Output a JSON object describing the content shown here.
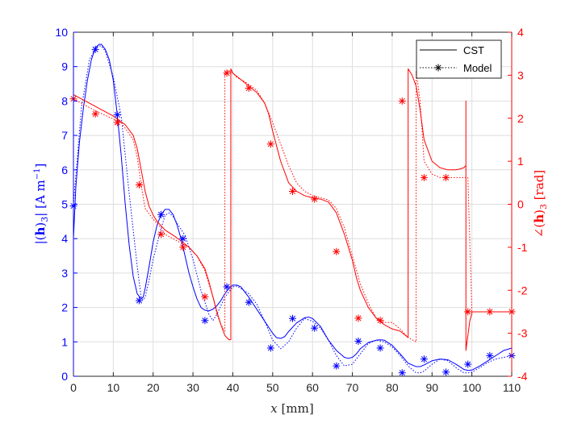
{
  "chart_data": {
    "type": "line",
    "title": "",
    "xlabel": "x [mm]",
    "ylabel_left": "|(h)3| [A m^-1]",
    "ylabel_right": "∠(h)3 [rad]",
    "xlim": [
      0,
      110
    ],
    "ylim_left": [
      0,
      10
    ],
    "ylim_right": [
      -4,
      4
    ],
    "x_ticks": [
      0,
      10,
      20,
      30,
      40,
      50,
      60,
      70,
      80,
      90,
      100,
      110
    ],
    "y_ticks_left": [
      0,
      1,
      2,
      3,
      4,
      5,
      6,
      7,
      8,
      9,
      10
    ],
    "y_ticks_right": [
      -4,
      -3,
      -2,
      -1,
      0,
      1,
      2,
      3,
      4
    ],
    "grid": true,
    "legend_position": "top-right",
    "legend": [
      "CST",
      "Model"
    ],
    "colors": {
      "magnitude": "#0000ff",
      "phase": "#ff0000",
      "legend_line": "#000000",
      "grid": "#dedede"
    },
    "series": [
      {
        "name": "CST",
        "quantity": "magnitude",
        "axis": "left",
        "line_style": "solid",
        "x": [
          0,
          0.6,
          1.5,
          2.5,
          3.5,
          4.5,
          5.5,
          6.5,
          7,
          8,
          9,
          10,
          11,
          12,
          13,
          14,
          15,
          16,
          17,
          17.5,
          18,
          19,
          20,
          21,
          22,
          23,
          24,
          25,
          26,
          27,
          28,
          29,
          30,
          31,
          32,
          33,
          34,
          35,
          36,
          37,
          38,
          39,
          40,
          41,
          42,
          44,
          46,
          48,
          50,
          51,
          52,
          53,
          54,
          56,
          58,
          59,
          60,
          62,
          64,
          66,
          68,
          69,
          70,
          71,
          72,
          74,
          76,
          77,
          78,
          80,
          82,
          84,
          86,
          87,
          88,
          90,
          92,
          94,
          96,
          98,
          99,
          100,
          102,
          104,
          106,
          108,
          110
        ],
        "y": [
          4.0,
          5.5,
          6.8,
          7.8,
          8.6,
          9.2,
          9.55,
          9.65,
          9.65,
          9.5,
          9.2,
          8.6,
          7.6,
          6.4,
          5.0,
          3.8,
          2.9,
          2.4,
          2.25,
          2.3,
          2.55,
          3.2,
          3.9,
          4.4,
          4.7,
          4.85,
          4.85,
          4.7,
          4.4,
          4.0,
          3.5,
          3.0,
          2.6,
          2.25,
          2.0,
          1.92,
          1.9,
          1.95,
          2.05,
          2.2,
          2.4,
          2.55,
          2.65,
          2.65,
          2.6,
          2.3,
          1.95,
          1.6,
          1.25,
          1.12,
          1.1,
          1.15,
          1.3,
          1.55,
          1.7,
          1.72,
          1.68,
          1.45,
          1.05,
          0.75,
          0.55,
          0.52,
          0.55,
          0.65,
          0.8,
          0.98,
          1.05,
          1.06,
          1.05,
          0.9,
          0.65,
          0.38,
          0.28,
          0.28,
          0.33,
          0.45,
          0.5,
          0.48,
          0.35,
          0.2,
          0.17,
          0.18,
          0.3,
          0.45,
          0.6,
          0.75,
          0.82
        ]
      },
      {
        "name": "Model",
        "quantity": "magnitude",
        "axis": "left",
        "line_style": "dotted",
        "x": [
          0,
          2,
          4,
          6,
          7,
          8,
          10,
          12,
          14,
          16,
          17,
          17.5,
          18,
          19,
          20,
          22,
          23,
          24,
          25,
          26,
          28,
          30,
          32,
          34,
          35,
          36,
          38,
          40,
          41,
          42,
          44,
          46,
          48,
          50,
          52,
          54,
          56,
          58,
          60,
          62,
          64,
          66,
          68,
          70,
          72,
          74,
          76,
          78,
          80,
          82,
          84,
          86,
          87,
          88,
          90,
          92,
          94,
          96,
          98,
          99,
          100,
          102,
          104,
          106,
          108,
          110
        ],
        "y": [
          5.0,
          7.8,
          9.2,
          9.6,
          9.6,
          9.45,
          8.7,
          7.55,
          5.3,
          3.2,
          2.3,
          2.22,
          2.3,
          2.8,
          3.4,
          4.3,
          4.68,
          4.75,
          4.65,
          4.45,
          4.1,
          3.4,
          2.5,
          1.8,
          1.62,
          1.8,
          2.3,
          2.6,
          2.62,
          2.55,
          2.4,
          2.1,
          1.6,
          1.05,
          0.8,
          1.0,
          1.4,
          1.68,
          1.6,
          1.4,
          1.05,
          0.6,
          0.3,
          0.35,
          0.65,
          0.95,
          1.05,
          1.0,
          0.85,
          0.6,
          0.3,
          0.1,
          0.1,
          0.15,
          0.35,
          0.5,
          0.45,
          0.25,
          0.1,
          0.1,
          0.12,
          0.25,
          0.4,
          0.5,
          0.55,
          0.6
        ]
      },
      {
        "name": "CST",
        "quantity": "phase",
        "axis": "right",
        "line_style": "solid",
        "x": [
          0,
          5,
          10,
          13,
          15,
          16,
          17,
          18,
          19,
          20,
          21,
          22,
          23,
          25,
          27,
          29,
          31,
          33,
          34,
          35,
          36,
          37,
          38,
          39,
          39.5,
          39.5,
          40,
          42,
          44,
          46,
          48,
          49,
          50,
          51,
          52,
          53,
          54,
          56,
          58,
          60,
          62,
          64,
          66,
          67,
          68,
          69,
          70,
          71,
          72,
          74,
          76,
          78,
          80,
          82,
          84,
          84,
          85,
          86,
          87,
          88,
          90,
          92,
          94,
          96,
          97,
          98,
          98.5,
          98.5,
          98.5,
          99.5,
          100,
          100,
          102,
          105,
          110
        ],
        "y": [
          2.55,
          2.3,
          2.05,
          1.85,
          1.6,
          1.3,
          0.8,
          0.3,
          -0.05,
          -0.25,
          -0.4,
          -0.5,
          -0.6,
          -0.72,
          -0.85,
          -1.0,
          -1.2,
          -1.5,
          -1.8,
          -2.15,
          -2.5,
          -2.8,
          -3.05,
          -3.15,
          -3.15,
          3.15,
          3.05,
          2.9,
          2.75,
          2.6,
          2.35,
          2.1,
          1.7,
          1.35,
          1.0,
          0.75,
          0.5,
          0.3,
          0.2,
          0.15,
          0.12,
          0.05,
          -0.2,
          -0.45,
          -0.7,
          -1.0,
          -1.3,
          -1.7,
          -2.0,
          -2.4,
          -2.65,
          -2.8,
          -2.9,
          -2.95,
          -3.1,
          3.15,
          3.0,
          2.75,
          2.2,
          1.5,
          1.0,
          0.85,
          0.8,
          0.8,
          0.82,
          0.85,
          0.9,
          2.4,
          -3.4,
          -2.7,
          -2.55,
          -2.5,
          -2.5,
          -2.5,
          -2.5
        ]
      },
      {
        "name": "Model",
        "quantity": "phase",
        "axis": "right",
        "line_style": "dotted",
        "x": [
          0,
          6,
          12,
          15,
          16,
          17,
          18,
          20,
          22,
          23,
          25,
          27,
          29,
          31,
          33,
          35,
          36,
          37,
          38,
          38,
          39,
          40,
          41,
          43,
          45,
          46,
          48,
          50,
          52,
          54,
          56,
          58,
          60,
          62,
          64,
          66,
          68,
          70,
          72,
          74,
          76,
          78,
          80,
          82,
          84,
          85,
          86,
          86,
          87,
          88,
          90,
          92,
          94,
          96,
          98,
          99,
          100,
          102,
          104,
          106,
          110
        ],
        "y": [
          2.45,
          2.15,
          1.9,
          1.5,
          1.1,
          0.45,
          -0.1,
          -0.35,
          -0.55,
          -0.7,
          -0.8,
          -0.9,
          -1.0,
          -1.2,
          -1.55,
          -2.15,
          -2.55,
          -2.8,
          -2.95,
          3.1,
          3.1,
          3.05,
          2.95,
          2.85,
          2.72,
          2.65,
          2.35,
          1.9,
          1.4,
          0.9,
          0.5,
          0.3,
          0.2,
          0.15,
          0.1,
          -0.1,
          -0.55,
          -1.2,
          -1.85,
          -2.3,
          -2.65,
          -2.75,
          -2.75,
          -2.9,
          -3.1,
          -3.15,
          -3.2,
          3.1,
          2.4,
          1.0,
          0.7,
          0.62,
          0.62,
          0.62,
          0.62,
          0.62,
          -2.5,
          -2.5,
          -2.5,
          -2.5,
          -2.5
        ]
      }
    ],
    "markers": {
      "symbol": "asterisk",
      "magnitude": {
        "x": [
          0,
          5.5,
          11,
          16.5,
          22,
          27.5,
          33,
          38.5,
          44,
          49.5,
          55,
          60.5,
          66,
          71.5,
          77,
          82.5,
          88,
          93.5,
          99,
          104.5,
          110
        ],
        "y": [
          4.95,
          9.5,
          7.6,
          2.2,
          4.7,
          4.0,
          1.62,
          2.6,
          2.15,
          0.82,
          1.68,
          1.4,
          0.3,
          1.02,
          0.82,
          0.1,
          0.5,
          0.12,
          0.35,
          0.6,
          0.6
        ]
      },
      "phase": {
        "x": [
          0,
          5.5,
          11,
          16.5,
          22,
          27.5,
          33,
          38.5,
          44,
          49.5,
          55,
          60.5,
          66,
          71.5,
          77,
          82.5,
          88,
          93.5,
          99,
          104.5,
          110
        ],
        "y": [
          2.45,
          2.1,
          1.9,
          0.45,
          -0.7,
          -1.0,
          -2.15,
          3.05,
          2.7,
          1.4,
          0.3,
          0.12,
          -1.1,
          -2.65,
          -2.7,
          2.4,
          0.62,
          0.62,
          -2.5,
          -2.5,
          -2.5
        ]
      }
    }
  }
}
